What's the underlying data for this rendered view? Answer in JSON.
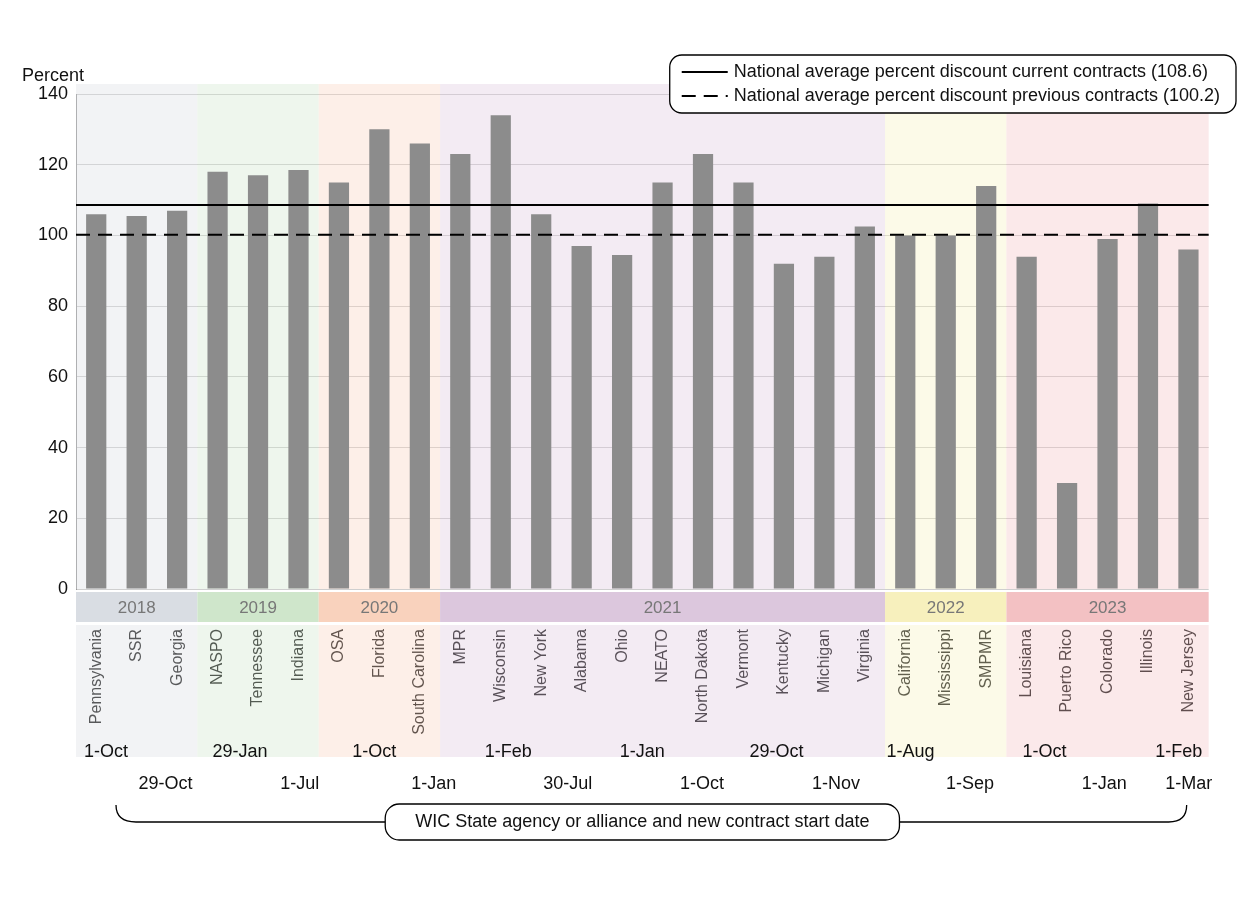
{
  "chart_data": {
    "type": "bar",
    "ylabel": "Percent",
    "xlabel": "WIC State agency or alliance and new contract start date",
    "categories": [
      "Pennsylvania",
      "SSR",
      "Georgia",
      "NASPO",
      "Tennessee",
      "Indiana",
      "OSA",
      "Florida",
      "South Carolina",
      "MPR",
      "Wisconsin",
      "New York",
      "Alabama",
      "Ohio",
      "NEATO",
      "North Dakota",
      "Vermont",
      "Kentucky",
      "Michigan",
      "Virginia",
      "California",
      "Mississippi",
      "SMPMR",
      "Louisiana",
      "Puerto Rico",
      "Colorado",
      "Illinois",
      "New Jersey"
    ],
    "values": [
      106,
      105.5,
      107,
      118,
      117,
      118.5,
      115,
      130,
      126,
      123,
      134,
      106,
      97,
      94.5,
      115,
      123,
      115,
      92,
      94,
      102.5,
      100,
      100,
      114,
      94,
      30,
      99,
      109,
      96
    ],
    "color": "#8c8c8c",
    "ylim": [
      0,
      140
    ],
    "yticks": [
      0,
      20,
      40,
      60,
      80,
      100,
      120,
      140
    ],
    "grid": "y",
    "legend": "top right",
    "ref_lines": [
      {
        "axis": "y",
        "value": 108.6,
        "label": "National average percent discount current contracts (108.6)",
        "color": "#000000",
        "line_style": "solid"
      },
      {
        "axis": "y",
        "value": 100.2,
        "label": "National average percent discount previous contracts (100.2)",
        "color": "#000000",
        "line_style": "dashed"
      }
    ],
    "bands": [
      {
        "axis": "x",
        "from": "Pennsylvania",
        "to": "Georgia",
        "label": "2018",
        "color": "#d9dde3"
      },
      {
        "axis": "x",
        "from": "NASPO",
        "to": "Indiana",
        "label": "2019",
        "color": "#cfe6cb"
      },
      {
        "axis": "x",
        "from": "OSA",
        "to": "South Carolina",
        "label": "2020",
        "color": "#f9d2bd"
      },
      {
        "axis": "x",
        "from": "MPR",
        "to": "Virginia",
        "label": "2021",
        "color": "#dcc7dd"
      },
      {
        "axis": "x",
        "from": "California",
        "to": "SMPMR",
        "label": "2022",
        "color": "#f7f0bd"
      },
      {
        "axis": "x",
        "from": "Louisiana",
        "to": "New Jersey",
        "label": "2023",
        "color": "#f3c1c3"
      }
    ],
    "annotations": [
      "1-Oct",
      "29-Oct",
      "29-Jan",
      "1-Jul",
      "1-Oct",
      "1-Jan",
      "1-Feb",
      "30-Jul",
      "1-Jan",
      "1-Oct",
      "29-Oct",
      "1-Nov",
      "1-Aug",
      "1-Sep",
      "1-Oct",
      "1-Jan",
      "1-Feb",
      "1-Mar"
    ]
  }
}
